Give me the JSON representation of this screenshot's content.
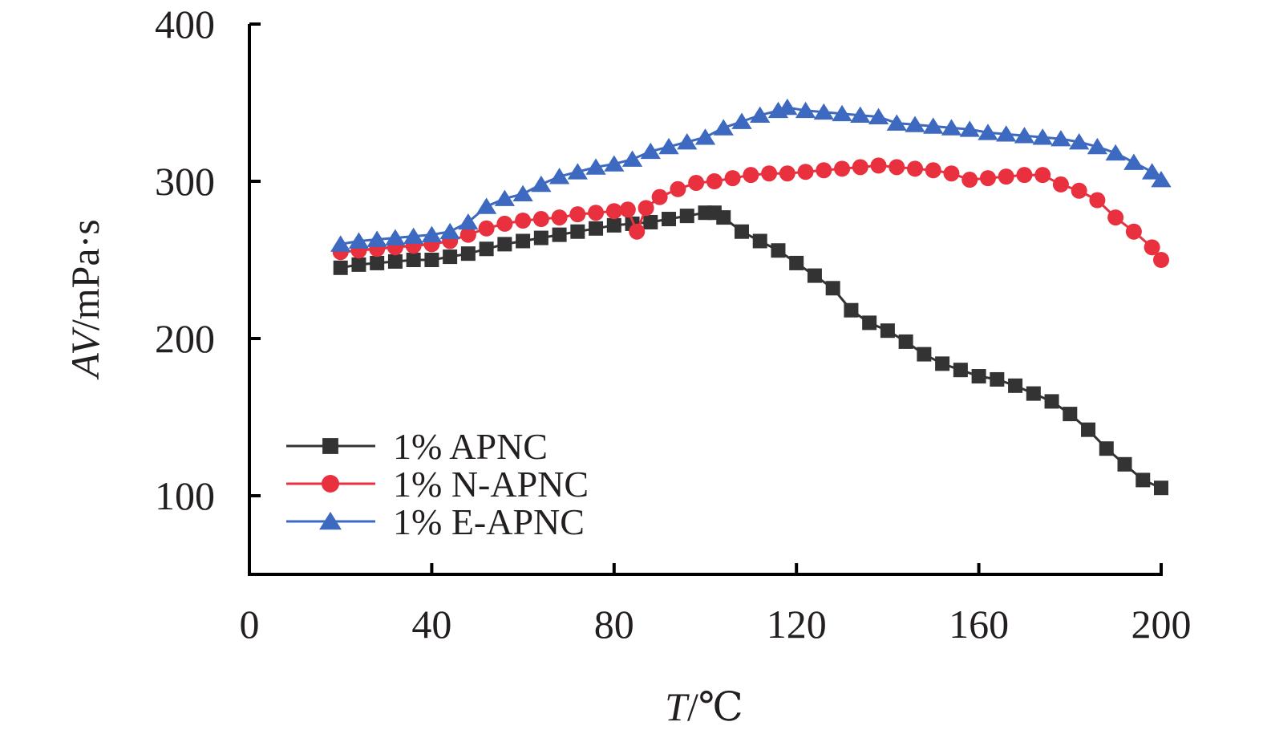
{
  "chart_data": {
    "type": "line",
    "xlabel_var": "T",
    "xlabel_unit": "/℃",
    "ylabel_var": "AV",
    "ylabel_unit": "/mPa·s",
    "xlim": [
      0,
      200
    ],
    "ylim": [
      50,
      400
    ],
    "x_ticks": [
      0,
      40,
      80,
      120,
      160,
      200
    ],
    "y_ticks": [
      100,
      200,
      300,
      400
    ],
    "grid": false,
    "legend_position": "bottom-left",
    "series": [
      {
        "name": "1% APNC",
        "color": "#333333",
        "marker": "square",
        "x": [
          20,
          24,
          28,
          32,
          36,
          40,
          44,
          48,
          52,
          56,
          60,
          64,
          68,
          72,
          76,
          80,
          84,
          88,
          92,
          96,
          100,
          102,
          104,
          108,
          112,
          116,
          120,
          124,
          128,
          132,
          136,
          140,
          144,
          148,
          152,
          156,
          160,
          164,
          168,
          172,
          176,
          180,
          184,
          188,
          192,
          196,
          200
        ],
        "y": [
          245,
          247,
          248,
          249,
          250,
          250,
          252,
          254,
          257,
          260,
          262,
          264,
          266,
          268,
          270,
          272,
          273,
          274,
          276,
          278,
          280,
          280,
          277,
          268,
          262,
          256,
          248,
          240,
          232,
          218,
          210,
          205,
          198,
          190,
          184,
          180,
          176,
          174,
          170,
          165,
          160,
          152,
          142,
          130,
          120,
          110,
          105
        ]
      },
      {
        "name": "1% N-APNC",
        "color": "#e8303f",
        "marker": "circle",
        "x": [
          20,
          24,
          28,
          32,
          36,
          40,
          44,
          48,
          52,
          56,
          60,
          64,
          68,
          72,
          76,
          80,
          83,
          85,
          87,
          90,
          94,
          98,
          102,
          106,
          110,
          114,
          118,
          122,
          126,
          130,
          134,
          138,
          142,
          146,
          150,
          154,
          158,
          162,
          166,
          170,
          174,
          178,
          182,
          186,
          190,
          194,
          198,
          200
        ],
        "y": [
          255,
          256,
          257,
          258,
          259,
          260,
          262,
          266,
          270,
          273,
          275,
          276,
          277,
          279,
          280,
          281,
          282,
          268,
          283,
          290,
          295,
          299,
          300,
          302,
          304,
          305,
          305,
          306,
          307,
          308,
          309,
          310,
          309,
          308,
          307,
          305,
          301,
          302,
          303,
          304,
          304,
          298,
          294,
          288,
          277,
          268,
          258,
          250
        ]
      },
      {
        "name": "1% E-APNC",
        "color": "#3d69c1",
        "marker": "triangle",
        "x": [
          20,
          24,
          28,
          32,
          36,
          40,
          44,
          48,
          52,
          56,
          60,
          64,
          68,
          72,
          76,
          80,
          84,
          88,
          92,
          96,
          100,
          104,
          108,
          112,
          116,
          118,
          122,
          126,
          130,
          134,
          138,
          142,
          146,
          150,
          154,
          158,
          162,
          166,
          170,
          174,
          178,
          182,
          186,
          190,
          194,
          198,
          200
        ],
        "y": [
          260,
          262,
          263,
          264,
          265,
          266,
          268,
          274,
          284,
          289,
          292,
          298,
          303,
          306,
          309,
          311,
          314,
          319,
          322,
          325,
          328,
          334,
          338,
          342,
          345,
          347,
          345,
          344,
          343,
          342,
          341,
          337,
          336,
          335,
          334,
          333,
          331,
          330,
          329,
          328,
          327,
          325,
          322,
          318,
          312,
          306,
          301
        ]
      }
    ]
  }
}
